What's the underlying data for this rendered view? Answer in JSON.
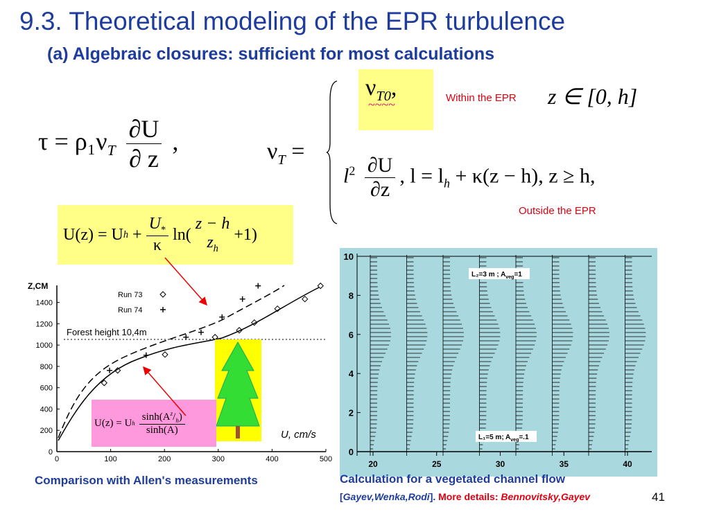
{
  "header": {
    "title": "9.3. Theoretical modeling of the EPR turbulence",
    "subtitle": "(a) Algebraic closures: sufficient for most calculations"
  },
  "eq_tau": {
    "lhs": "τ = ρ₁ν",
    "lhs_sub": "T",
    "num": "∂U",
    "den": "∂ z",
    "tail": ","
  },
  "eq_nu": {
    "lhs": "ν",
    "lhs_sub": "T",
    "eq": "=",
    "inside": {
      "nu": "ν",
      "sub": "T0",
      "tail": ",",
      "tilde": "~~~~",
      "label": "Within the EPR",
      "cond": "z ∈ [0, h]"
    },
    "outside": {
      "l": "l",
      "sup": "2",
      "num": "∂U",
      "den": "∂z",
      "rest": ", l = l",
      "rest_sub": "h",
      "rest2": " + κ(z − h),  z ≥ h,",
      "label": "Outside the EPR"
    }
  },
  "eq_log": {
    "lhs": "U(z) = U",
    "lhs_sub": "h",
    "plus": "+",
    "num": "U",
    "num_sub": "*",
    "den": "κ",
    "ln": "ln(",
    "num2": "z − h",
    "den2": "z",
    "den2_sub": "h",
    "tail": "+1)"
  },
  "eq_sinh": {
    "lhs": "U(z) = U",
    "lhs_sub": "h",
    "num_a": "sinh(A",
    "num_z": "z",
    "num_h": "h",
    "num_b": ")",
    "den": "sinh(A)"
  },
  "allen_plot": {
    "y_label": "Z,CM",
    "x_label": "U, cm/s",
    "forest": "Forest height 10,4m",
    "xlim": [
      0,
      500
    ],
    "ylim": [
      0,
      1560
    ],
    "xticks": [
      0,
      100,
      200,
      300,
      400,
      500
    ],
    "yticks": [
      0,
      200,
      400,
      600,
      800,
      1000,
      1200,
      1400
    ],
    "series": [
      {
        "name": "Run 73",
        "x": [
          88,
          113,
          201,
          294,
          339,
          367,
          410,
          461,
          490
        ],
        "y": [
          645,
          762,
          911,
          1074,
          1139,
          1211,
          1341,
          1432,
          1556
        ]
      },
      {
        "name": "Run 74",
        "x": [
          98,
          166,
          240,
          268,
          307,
          345,
          374
        ],
        "y": [
          762,
          905,
          1074,
          1120,
          1263,
          1432,
          1556
        ]
      }
    ],
    "caption": "Comparison with Allen's measurements"
  },
  "channel_plot": {
    "xlim": [
      18,
      41.5
    ],
    "ylim": [
      -0.5,
      10.2
    ],
    "xticks": [
      20,
      25,
      30,
      35,
      40
    ],
    "yticks": [
      0,
      2,
      4,
      6,
      8,
      10
    ],
    "label_top": {
      "main": "L₂=3 m ; A",
      "sub": "veg",
      "tail": "=1"
    },
    "label_bottom": {
      "main": "L₁=5 m; A",
      "sub": "veg",
      "tail": "=.1"
    },
    "caption": "Calculation for a vegetated channel flow",
    "cite_open": "[",
    "cite_authors": "Gayev,Wenka,Rodi",
    "cite_close": "].",
    "more": "More details:",
    "more_authors": "Bennovitsky,Gayev"
  },
  "page_number": "41"
}
